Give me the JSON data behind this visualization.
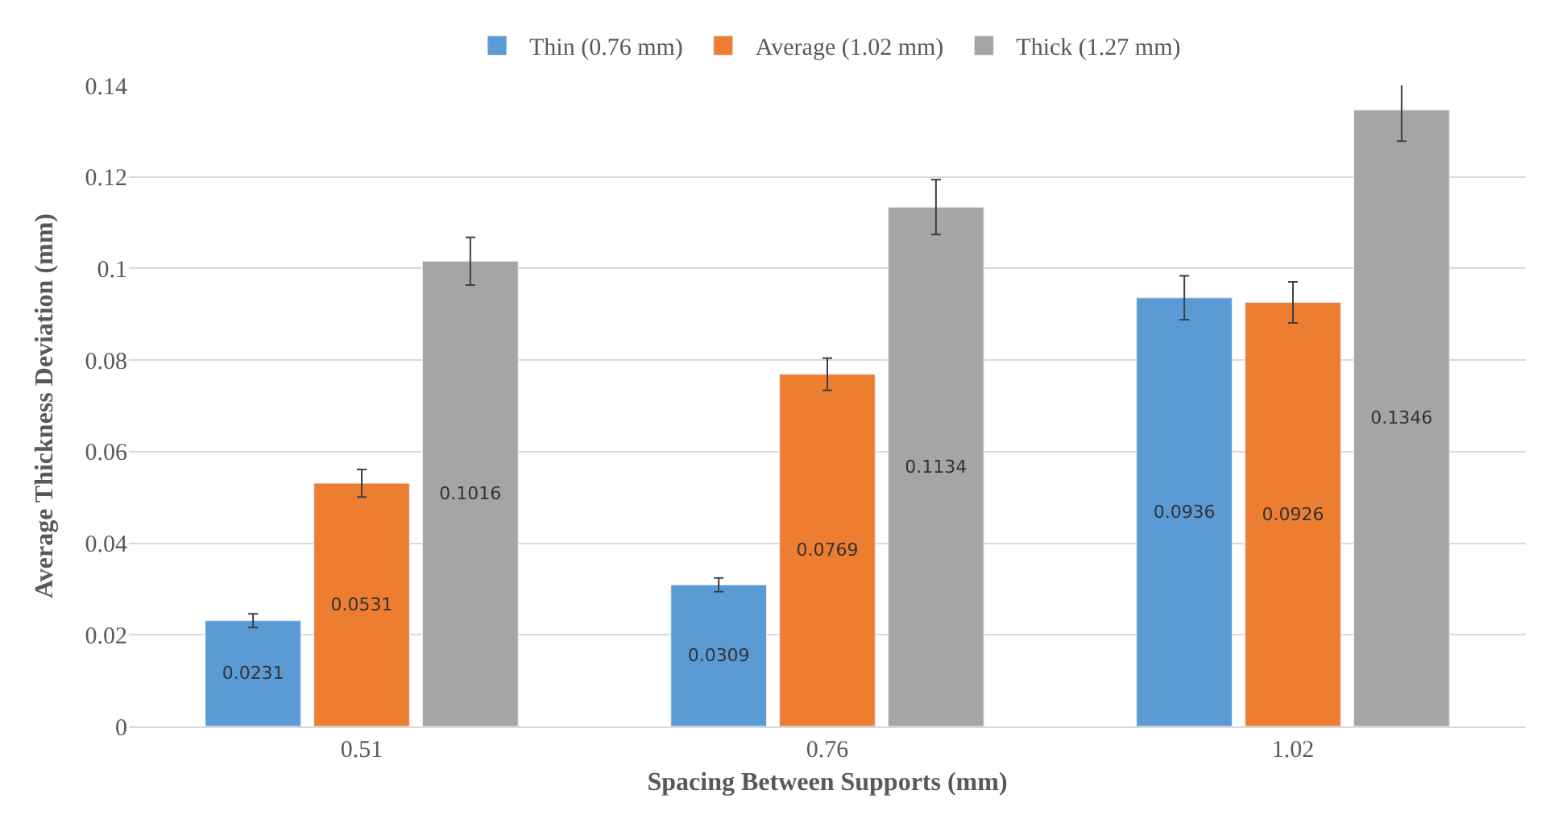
{
  "chart_data": {
    "type": "bar",
    "xlabel": "Spacing Between Supports (mm)",
    "ylabel": "Average Thickness Deviation (mm)",
    "categories": [
      "0.51",
      "0.76",
      "1.02"
    ],
    "series": [
      {
        "name": "Thin (0.76 mm)",
        "color": "#5b9bd5",
        "values": [
          0.0231,
          0.0309,
          0.0936
        ],
        "errors": [
          0.0015,
          0.0015,
          0.0048
        ]
      },
      {
        "name": "Average (1.02 mm)",
        "color": "#ed7d31",
        "values": [
          0.0531,
          0.0769,
          0.0926
        ],
        "errors": [
          0.003,
          0.0035,
          0.0045
        ]
      },
      {
        "name": "Thick (1.27 mm)",
        "color": "#a5a5a5",
        "values": [
          0.1016,
          0.1134,
          0.1346
        ],
        "errors": [
          0.0052,
          0.006,
          0.0068
        ]
      }
    ],
    "ylim": [
      0,
      0.14
    ],
    "yticks": [
      0,
      0.02,
      0.04,
      0.06,
      0.08,
      0.1,
      0.12,
      0.14
    ],
    "grid": "y",
    "legend": "top",
    "data_labels": true
  }
}
